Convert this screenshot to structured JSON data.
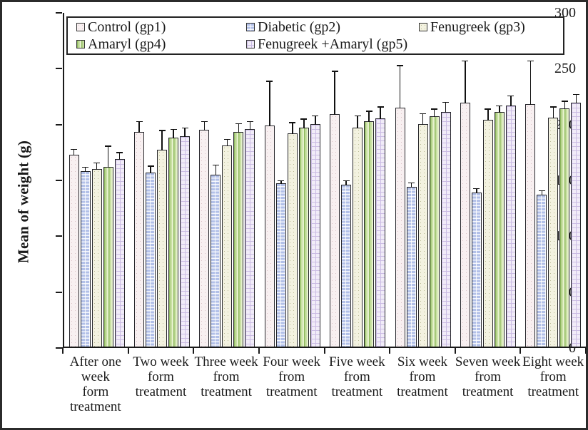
{
  "figure": {
    "border_color": "#2b2b2b",
    "background": "#ffffff"
  },
  "chart_data": {
    "type": "bar",
    "title": "",
    "xlabel": "",
    "ylabel": "Mean of weight (g)",
    "ylim": [
      0,
      300
    ],
    "yticks": [
      0,
      50,
      100,
      150,
      200,
      250,
      300
    ],
    "grid": false,
    "legend_position": "top",
    "error_bars": "upper",
    "categories": [
      "After one\nweek\nform\ntreatment",
      "Two week\nform\ntreatment",
      "Three week\nfrom\ntreatment",
      "Four week\nfrom\ntreatment",
      "Five week\nfrom\ntreatment",
      "Six week\nfrom\ntreatment",
      "Seven week\nfrom\ntreatment",
      "Eight week\nfrom\ntreatment"
    ],
    "series": [
      {
        "name": "Control (gp1)",
        "values": [
          172,
          192,
          194,
          198,
          208,
          214,
          218,
          217
        ],
        "errors": [
          5,
          10,
          8,
          40,
          39,
          38,
          38,
          39
        ],
        "fill": "#f8f0f1",
        "accent": "#dcc2c8",
        "pattern": "dots"
      },
      {
        "name": "Diabetic (gp2)",
        "values": [
          157,
          156,
          154,
          146,
          145,
          143,
          138,
          136
        ],
        "errors": [
          4,
          6,
          9,
          3,
          4,
          4,
          4,
          4
        ],
        "fill": "#b2c0e8",
        "accent": "#ffffffd9",
        "pattern": "brick"
      },
      {
        "name": "Fenugreek (gp3)",
        "values": [
          159,
          176,
          180,
          191,
          196,
          199,
          203,
          205
        ],
        "errors": [
          6,
          18,
          6,
          10,
          11,
          10,
          10,
          10
        ],
        "fill": "#f3f2e0",
        "accent": "#b9ba94",
        "pattern": "dots"
      },
      {
        "name": "Amaryl (gp4)",
        "values": [
          161,
          187,
          192,
          196,
          202,
          206,
          210,
          213
        ],
        "errors": [
          19,
          8,
          8,
          8,
          9,
          7,
          6,
          7
        ],
        "fill": "#c9e0a3",
        "accent": "#8fba5f",
        "pattern": "vstripes"
      },
      {
        "name": "Fenugreek +Amaryl (gp5)",
        "values": [
          168,
          188,
          195,
          199,
          204,
          210,
          216,
          218
        ],
        "errors": [
          6,
          8,
          7,
          8,
          11,
          9,
          9,
          8
        ],
        "fill": "#f1ecf8",
        "accent": "#cbbce4",
        "pattern": "grid"
      }
    ]
  }
}
